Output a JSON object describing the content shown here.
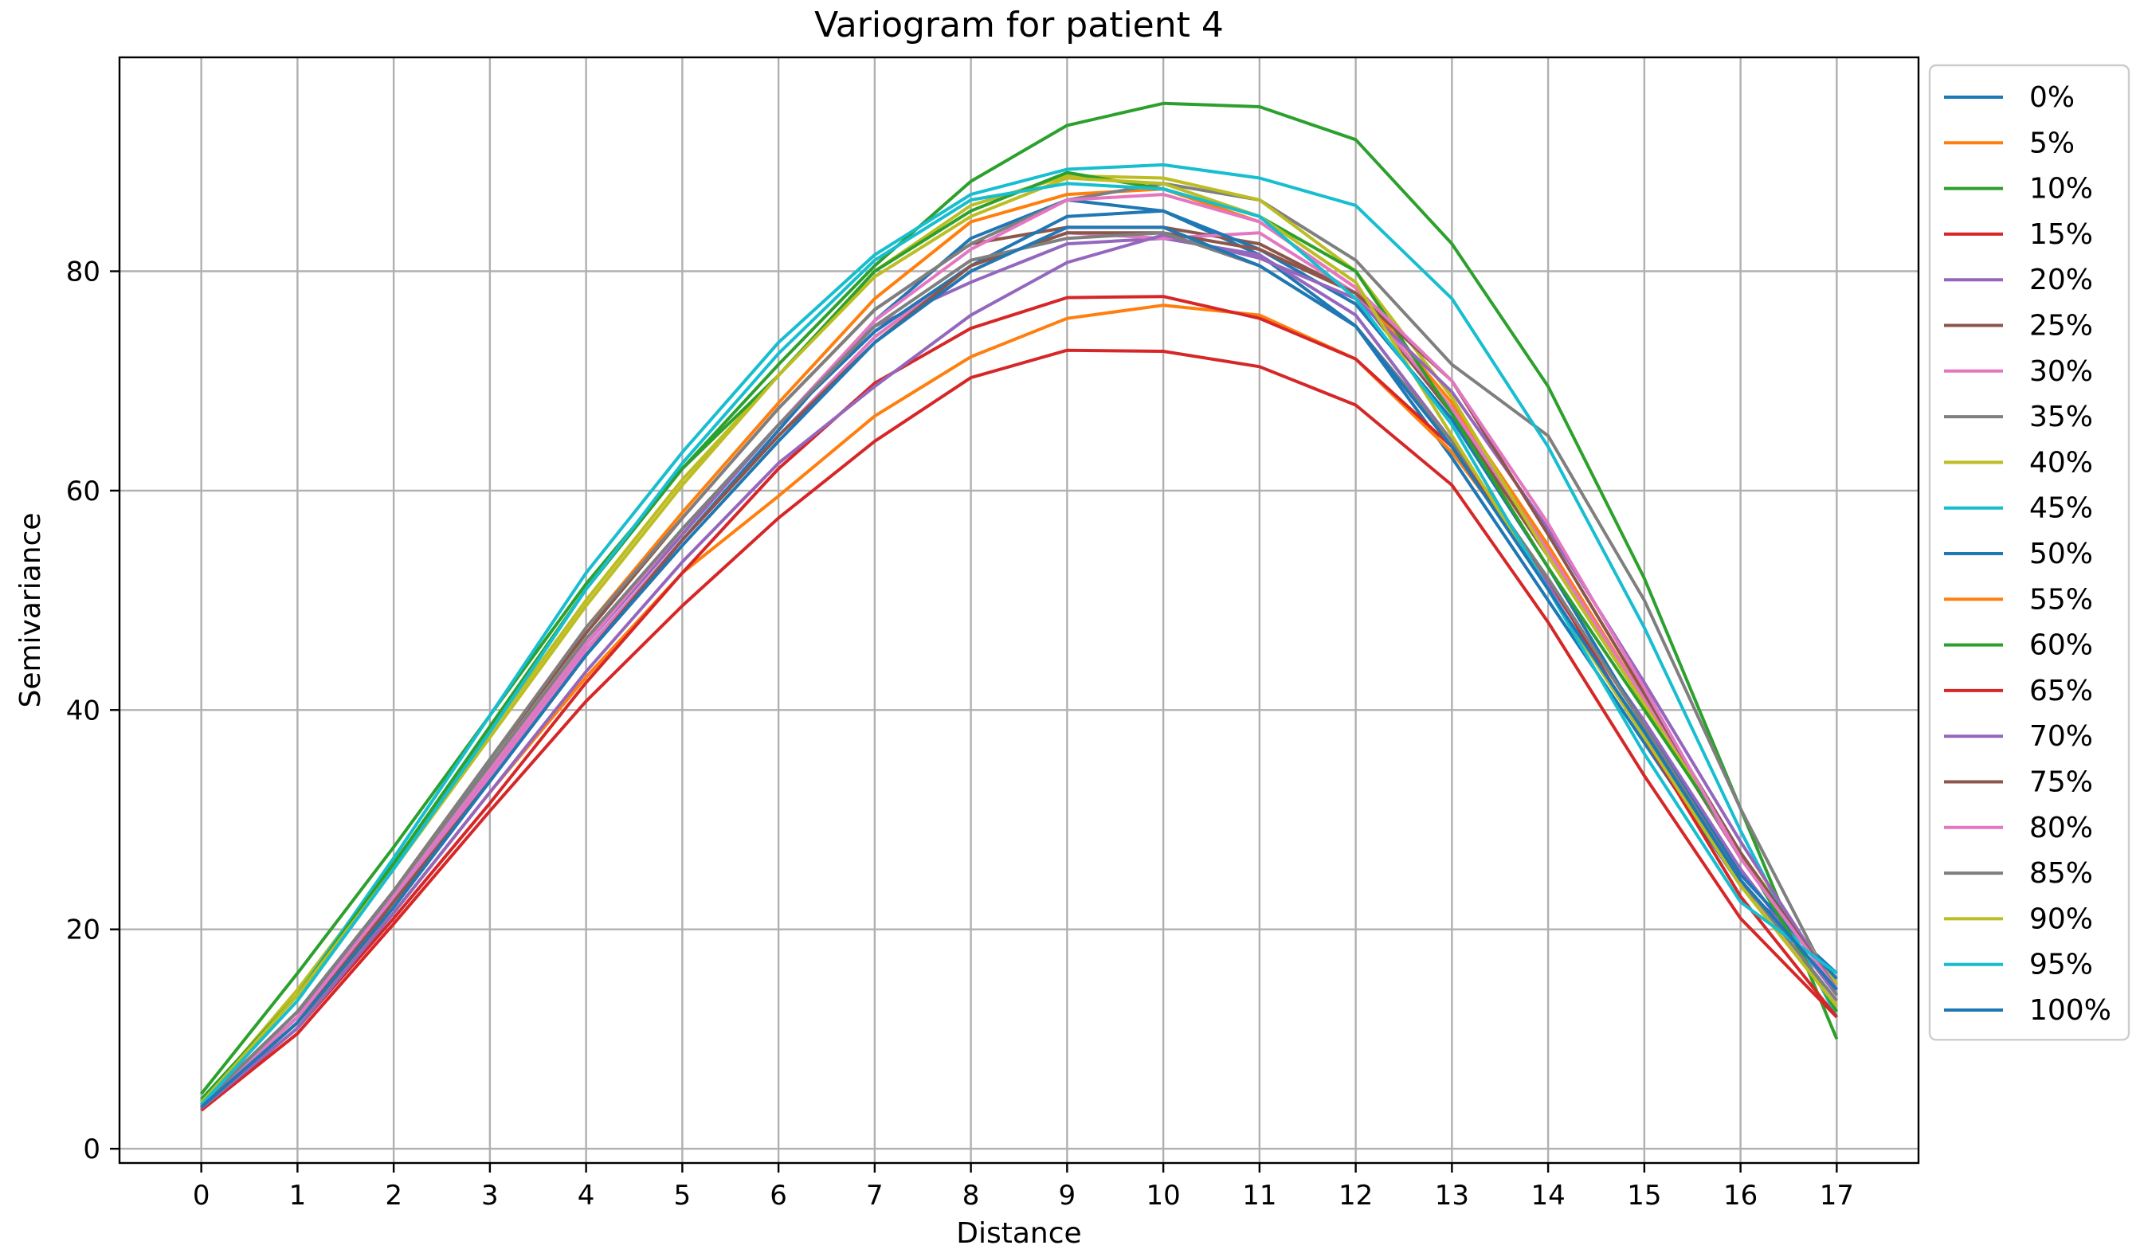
{
  "chart_data": {
    "type": "line",
    "title": "Variogram for patient 4",
    "xlabel": "Distance",
    "ylabel": "Semivariance",
    "x": [
      0,
      1,
      2,
      3,
      4,
      5,
      6,
      7,
      8,
      9,
      10,
      11,
      12,
      13,
      14,
      15,
      16,
      17
    ],
    "xlim": [
      -0.85,
      17.85
    ],
    "ylim": [
      -1.3,
      99.5
    ],
    "xticks": [
      "0",
      "1",
      "2",
      "3",
      "4",
      "5",
      "6",
      "7",
      "8",
      "9",
      "10",
      "11",
      "12",
      "13",
      "14",
      "15",
      "16",
      "17"
    ],
    "yticks": [
      0,
      20,
      40,
      60,
      80
    ],
    "grid": true,
    "legend_position": "outside-right",
    "series": [
      {
        "name": "0%",
        "color": "#1f77b4",
        "values": [
          3.8,
          11.5,
          22.5,
          34.0,
          45.5,
          55.5,
          65.5,
          75.5,
          83.0,
          86.5,
          85.5,
          81.5,
          75.0,
          63.0,
          50.0,
          37.0,
          24.0,
          16.0
        ]
      },
      {
        "name": "5%",
        "color": "#ff7f0e",
        "values": [
          4.0,
          12.0,
          23.5,
          35.5,
          47.5,
          58.0,
          68.0,
          77.5,
          84.5,
          87.0,
          87.5,
          84.5,
          78.5,
          68.0,
          55.0,
          41.0,
          26.5,
          14.5
        ]
      },
      {
        "name": "10%",
        "color": "#2ca02c",
        "values": [
          5.0,
          16.0,
          27.5,
          39.5,
          51.5,
          62.0,
          71.5,
          80.5,
          88.2,
          93.3,
          95.3,
          95.0,
          92.0,
          82.5,
          69.5,
          52.0,
          31.0,
          10.0
        ]
      },
      {
        "name": "15%",
        "color": "#d62728",
        "values": [
          3.5,
          10.5,
          20.5,
          30.8,
          40.8,
          49.5,
          57.5,
          64.5,
          70.3,
          72.8,
          72.7,
          71.3,
          67.8,
          60.5,
          48.0,
          34.0,
          21.0,
          12.0
        ]
      },
      {
        "name": "20%",
        "color": "#9467bd",
        "values": [
          3.9,
          12.0,
          23.0,
          34.5,
          46.0,
          56.0,
          66.0,
          75.0,
          79.0,
          82.5,
          83.0,
          81.5,
          76.0,
          64.5,
          51.5,
          39.0,
          25.5,
          14.0
        ]
      },
      {
        "name": "25%",
        "color": "#8c564b",
        "values": [
          4.0,
          12.5,
          23.5,
          35.5,
          47.0,
          57.5,
          67.5,
          76.5,
          82.5,
          84.0,
          84.0,
          82.5,
          78.0,
          67.0,
          54.0,
          40.5,
          26.5,
          15.0
        ]
      },
      {
        "name": "30%",
        "color": "#e377c2",
        "values": [
          4.0,
          12.0,
          22.5,
          34.0,
          45.5,
          55.5,
          65.0,
          74.0,
          80.5,
          83.5,
          83.0,
          83.5,
          78.0,
          67.5,
          54.5,
          41.0,
          26.5,
          15.0
        ]
      },
      {
        "name": "35%",
        "color": "#7f7f7f",
        "values": [
          4.0,
          12.5,
          23.5,
          35.5,
          47.5,
          57.5,
          67.5,
          76.5,
          82.5,
          86.5,
          88.0,
          86.5,
          81.0,
          71.5,
          65.0,
          50.0,
          31.0,
          14.0
        ]
      },
      {
        "name": "40%",
        "color": "#bcbd22",
        "values": [
          4.2,
          14.5,
          26.0,
          38.0,
          50.0,
          61.0,
          70.5,
          80.0,
          86.0,
          88.7,
          88.5,
          86.5,
          80.0,
          68.5,
          54.0,
          40.5,
          27.0,
          15.0
        ]
      },
      {
        "name": "45%",
        "color": "#17becf",
        "values": [
          4.3,
          14.0,
          26.5,
          39.5,
          52.5,
          63.5,
          73.5,
          81.5,
          87.0,
          89.3,
          89.7,
          88.5,
          86.0,
          77.5,
          64.0,
          47.5,
          29.0,
          12.0
        ]
      },
      {
        "name": "50%",
        "color": "#1f77b4",
        "values": [
          4.0,
          12.5,
          23.0,
          34.5,
          46.0,
          56.5,
          66.0,
          74.5,
          80.5,
          85.0,
          85.5,
          82.0,
          77.0,
          66.5,
          53.0,
          38.5,
          25.0,
          15.5
        ]
      },
      {
        "name": "55%",
        "color": "#ff7f0e",
        "values": [
          3.8,
          11.5,
          21.5,
          32.5,
          43.0,
          52.5,
          59.5,
          66.8,
          72.2,
          75.7,
          76.9,
          76.0,
          72.0,
          63.5,
          52.0,
          38.5,
          24.0,
          13.0
        ]
      },
      {
        "name": "60%",
        "color": "#2ca02c",
        "values": [
          4.5,
          14.0,
          26.0,
          38.5,
          51.0,
          62.0,
          70.5,
          80.0,
          85.5,
          89.0,
          87.5,
          85.0,
          80.0,
          67.0,
          53.0,
          40.0,
          27.0,
          12.5
        ]
      },
      {
        "name": "65%",
        "color": "#d62728",
        "values": [
          3.6,
          11.0,
          21.0,
          31.5,
          42.5,
          52.5,
          62.0,
          69.8,
          74.8,
          77.6,
          77.7,
          75.7,
          72.0,
          64.0,
          52.0,
          37.5,
          23.0,
          12.0
        ]
      },
      {
        "name": "70%",
        "color": "#9467bd",
        "values": [
          3.7,
          11.0,
          21.5,
          32.5,
          43.5,
          53.5,
          62.5,
          69.5,
          76.0,
          80.8,
          83.3,
          81.2,
          77.5,
          69.0,
          56.5,
          42.5,
          28.0,
          14.5
        ]
      },
      {
        "name": "75%",
        "color": "#8c564b",
        "values": [
          3.8,
          11.5,
          22.5,
          33.5,
          45.0,
          55.5,
          65.0,
          73.5,
          80.5,
          83.5,
          83.5,
          82.0,
          78.0,
          70.0,
          56.0,
          41.5,
          27.0,
          14.5
        ]
      },
      {
        "name": "80%",
        "color": "#e377c2",
        "values": [
          3.9,
          12.0,
          23.0,
          34.5,
          46.0,
          56.5,
          66.0,
          75.5,
          82.0,
          86.5,
          87.0,
          84.5,
          78.5,
          70.0,
          57.0,
          42.0,
          26.5,
          14.5
        ]
      },
      {
        "name": "85%",
        "color": "#7f7f7f",
        "values": [
          4.0,
          12.5,
          23.5,
          35.0,
          46.5,
          56.5,
          66.0,
          75.0,
          81.0,
          83.0,
          83.5,
          80.5,
          75.0,
          64.5,
          52.0,
          38.5,
          24.5,
          13.5
        ]
      },
      {
        "name": "90%",
        "color": "#bcbd22",
        "values": [
          4.2,
          14.0,
          25.5,
          37.5,
          49.5,
          60.5,
          70.5,
          79.5,
          85.0,
          88.5,
          88.0,
          85.0,
          79.0,
          65.0,
          51.0,
          37.5,
          24.0,
          13.0
        ]
      },
      {
        "name": "95%",
        "color": "#17becf",
        "values": [
          4.0,
          13.5,
          25.5,
          38.0,
          51.0,
          62.5,
          72.5,
          81.0,
          86.5,
          88.0,
          87.5,
          85.0,
          77.5,
          66.0,
          51.0,
          36.0,
          22.5,
          16.0
        ]
      },
      {
        "name": "100%",
        "color": "#1f77b4",
        "values": [
          3.8,
          11.5,
          22.0,
          33.5,
          45.0,
          55.0,
          64.5,
          73.5,
          80.0,
          84.0,
          84.0,
          80.5,
          75.0,
          64.0,
          51.0,
          38.0,
          24.5,
          14.5
        ]
      }
    ]
  }
}
